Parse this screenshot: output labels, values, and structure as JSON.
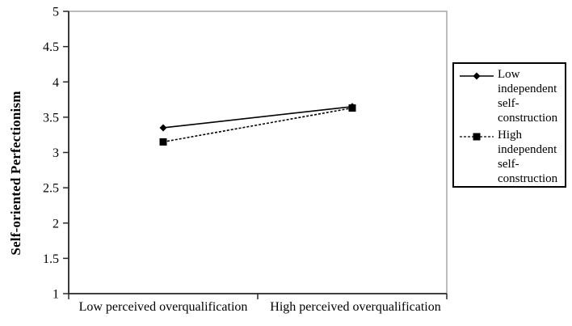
{
  "chart_data": {
    "type": "line",
    "title": "",
    "categories": [
      "Low perceived overqualification",
      "High perceived overqualification"
    ],
    "series": [
      {
        "name": "Low independent self-construction",
        "values": [
          3.35,
          3.65
        ],
        "line_style": "solid",
        "marker": "diamond",
        "color": "#000000"
      },
      {
        "name": "High independent self-construction",
        "values": [
          3.15,
          3.63
        ],
        "line_style": "dashed",
        "marker": "square",
        "color": "#000000"
      }
    ],
    "xlabel": "",
    "ylabel": "Self-oriented Perfectionism",
    "ylim": [
      1,
      5
    ],
    "yticks": [
      1,
      1.5,
      2,
      2.5,
      3,
      3.5,
      4,
      4.5,
      5
    ],
    "ytick_labels": [
      "1",
      "1.5",
      "2",
      "2.5",
      "3",
      "3.5",
      "4",
      "4.5",
      "5"
    ],
    "grid": false,
    "legend_position": "right-outside"
  },
  "colors": {
    "axis": "#2b2b2b",
    "plot_border": "#a6a6a6",
    "text": "#000000",
    "legend_border": "#000000",
    "background": "#ffffff"
  }
}
